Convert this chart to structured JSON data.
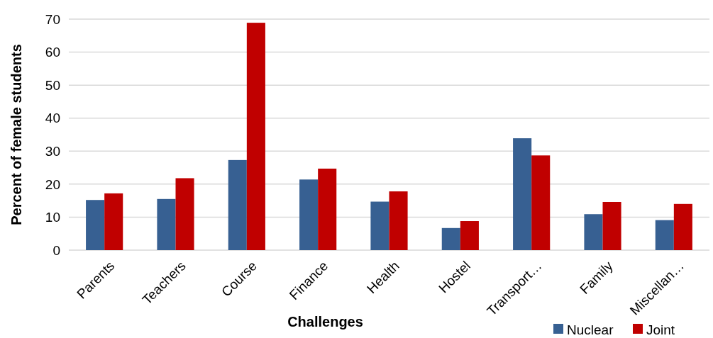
{
  "chart_data": {
    "type": "bar",
    "xlabel": "Challenges",
    "ylabel": "Percent of female students",
    "categories": [
      "Parents",
      "Teachers",
      "Course",
      "Finance",
      "Health",
      "Hostel",
      "Transport…",
      "Family",
      "Miscellan…"
    ],
    "series": [
      {
        "name": "Nuclear",
        "color": "#376092",
        "values": [
          15.2,
          15.5,
          27.3,
          21.4,
          14.7,
          6.7,
          33.9,
          10.9,
          9.1
        ]
      },
      {
        "name": "Joint",
        "color": "#c00000",
        "values": [
          17.2,
          21.8,
          68.9,
          24.7,
          17.8,
          8.8,
          28.7,
          14.6,
          14.0
        ]
      }
    ],
    "ylim": [
      0,
      70
    ],
    "yticks": [
      0,
      10,
      20,
      30,
      40,
      50,
      60,
      70
    ],
    "grid": "y",
    "legend": "bottom right"
  }
}
